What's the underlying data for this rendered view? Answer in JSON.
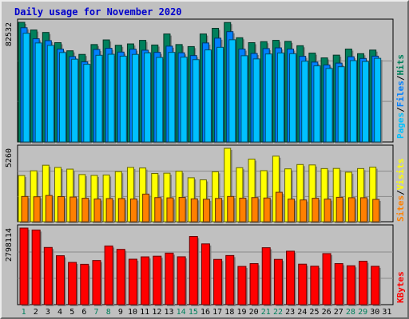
{
  "title": "Daily usage for November 2020",
  "colors": {
    "background": "#c0c0c0",
    "title": "#0000cc",
    "hits": "#00805c",
    "files": "#0080ff",
    "pages": "#00c0ff",
    "visits": "#ffff00",
    "sites": "#ff8000",
    "kbytes": "#ff0000",
    "weekend_day": "#00805c",
    "weekday": "#000000"
  },
  "chart_data": [
    {
      "type": "bar",
      "panel": "hits_files_pages",
      "max_label": "82532",
      "legend": [
        "Pages",
        "/",
        "Files",
        "/",
        "Hits"
      ],
      "categories": [
        "1",
        "2",
        "3",
        "4",
        "5",
        "6",
        "7",
        "8",
        "9",
        "10",
        "11",
        "12",
        "13",
        "14",
        "15",
        "16",
        "17",
        "18",
        "19",
        "20",
        "21",
        "22",
        "23",
        "24",
        "25",
        "26",
        "27",
        "28",
        "29",
        "30",
        "31"
      ],
      "weekend_days": [
        "1",
        "7",
        "8",
        "14",
        "15",
        "21",
        "22",
        "28",
        "29"
      ],
      "ylim": [
        0,
        82532
      ],
      "series": [
        {
          "name": "Hits",
          "values": [
            82532,
            77250,
            75550,
            68500,
            62900,
            60400,
            67200,
            70400,
            66700,
            67650,
            70100,
            66900,
            74500,
            67200,
            65800,
            74500,
            78400,
            82400,
            71900,
            68500,
            69200,
            70100,
            69400,
            66400,
            61300,
            58000,
            59900,
            64100,
            60900,
            63400,
            0
          ]
        },
        {
          "name": "Files",
          "values": [
            78800,
            71200,
            69900,
            64050,
            58900,
            55250,
            63800,
            64600,
            62000,
            64000,
            63300,
            61800,
            66100,
            61500,
            59600,
            68300,
            71600,
            76100,
            64100,
            61050,
            64400,
            64900,
            64100,
            59100,
            55100,
            53100,
            54400,
            58800,
            57600,
            59200,
            0
          ]
        },
        {
          "name": "Pages",
          "values": [
            75000,
            68300,
            66600,
            61700,
            57100,
            53600,
            59800,
            60500,
            59200,
            60400,
            61500,
            58300,
            61800,
            58500,
            56800,
            63500,
            65300,
            70500,
            59500,
            57300,
            60700,
            61400,
            60900,
            55700,
            52500,
            50700,
            51900,
            56100,
            55500,
            57700,
            0
          ]
        }
      ]
    },
    {
      "type": "bar",
      "panel": "visits_sites",
      "max_label": "5260",
      "legend": [
        "Sites",
        "/",
        "Visits"
      ],
      "categories": [
        "1",
        "2",
        "3",
        "4",
        "5",
        "6",
        "7",
        "8",
        "9",
        "10",
        "11",
        "12",
        "13",
        "14",
        "15",
        "16",
        "17",
        "18",
        "19",
        "20",
        "21",
        "22",
        "23",
        "24",
        "25",
        "26",
        "27",
        "28",
        "29",
        "30",
        "31"
      ],
      "ylim": [
        0,
        5260
      ],
      "series": [
        {
          "name": "Visits",
          "values": [
            3310,
            3650,
            4050,
            3890,
            3770,
            3380,
            3320,
            3350,
            3590,
            3890,
            3850,
            3460,
            3480,
            3620,
            3150,
            3000,
            3580,
            5260,
            3870,
            4490,
            3660,
            4700,
            3790,
            4100,
            4070,
            3810,
            3820,
            3550,
            3810,
            3910,
            0
          ]
        },
        {
          "name": "Sites",
          "values": [
            1810,
            1790,
            1880,
            1800,
            1770,
            1680,
            1630,
            1660,
            1660,
            1630,
            1980,
            1730,
            1710,
            1740,
            1640,
            1610,
            1670,
            1810,
            1690,
            1730,
            1700,
            2110,
            1620,
            1560,
            1680,
            1620,
            1750,
            1720,
            1720,
            1600,
            0
          ]
        }
      ]
    },
    {
      "type": "bar",
      "panel": "kbytes",
      "max_label": "2798114",
      "legend": [
        "KBytes"
      ],
      "categories": [
        "1",
        "2",
        "3",
        "4",
        "5",
        "6",
        "7",
        "8",
        "9",
        "10",
        "11",
        "12",
        "13",
        "14",
        "15",
        "16",
        "17",
        "18",
        "19",
        "20",
        "21",
        "22",
        "23",
        "24",
        "25",
        "26",
        "27",
        "28",
        "29",
        "30",
        "31"
      ],
      "ylim": [
        0,
        2798114
      ],
      "series": [
        {
          "name": "KBytes",
          "values": [
            2798114,
            2729000,
            2090000,
            1788600,
            1544600,
            1475000,
            1613000,
            2145000,
            2020000,
            1661000,
            1747000,
            1772000,
            1884000,
            1750000,
            2491000,
            2221000,
            1654000,
            1796000,
            1398000,
            1500000,
            2081000,
            1655000,
            1954000,
            1480000,
            1405000,
            1866000,
            1500000,
            1421000,
            1586000,
            1402000,
            0
          ]
        }
      ]
    }
  ]
}
